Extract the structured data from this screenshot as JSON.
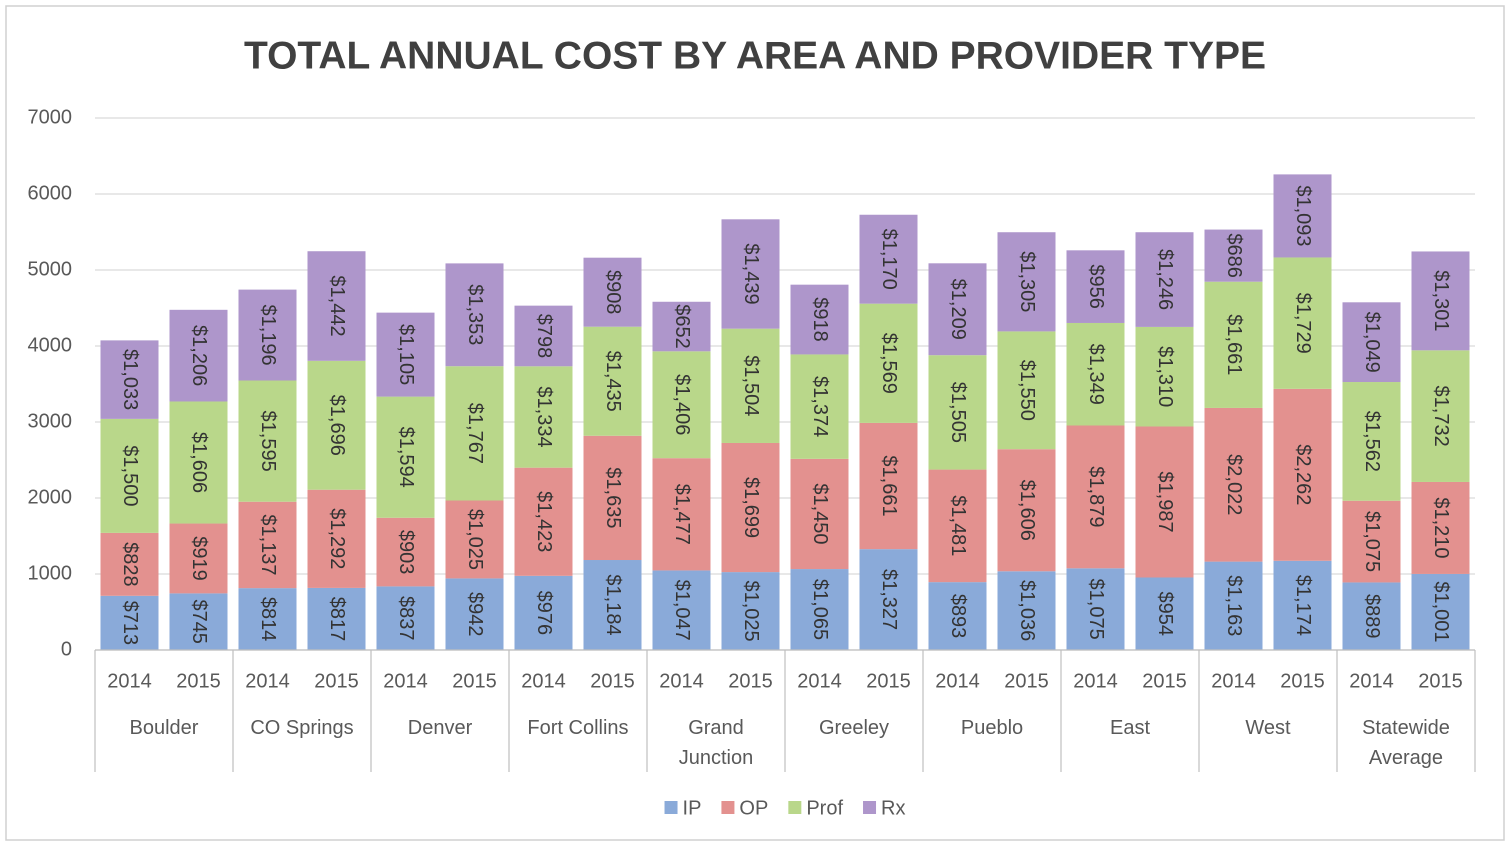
{
  "chart_data": {
    "type": "bar",
    "stacked": true,
    "title": "TOTAL ANNUAL COST BY AREA AND PROVIDER TYPE",
    "categories": [
      "2014",
      "2015",
      "2014",
      "2015",
      "2014",
      "2015",
      "2014",
      "2015",
      "2014",
      "2015",
      "2014",
      "2015",
      "2014",
      "2015",
      "2014",
      "2015",
      "2014",
      "2015",
      "2014",
      "2015"
    ],
    "groups": [
      "Boulder",
      "CO Springs",
      "Denver",
      "Fort Collins",
      "Grand Junction",
      "Greeley",
      "Pueblo",
      "East",
      "West",
      "Statewide Average"
    ],
    "series": [
      {
        "name": "IP",
        "color": "#8aaad9",
        "values": [
          713,
          745,
          814,
          817,
          837,
          942,
          976,
          1184,
          1047,
          1025,
          1065,
          1327,
          893,
          1036,
          1075,
          954,
          1163,
          1174,
          889,
          1001
        ],
        "value_labels": [
          "$713",
          "$745",
          "$814",
          "$817",
          "$837",
          "$942",
          "$976",
          "$1,184",
          "$1,047",
          "$1,025",
          "$1,065",
          "$1,327",
          "$893",
          "$1,036",
          "$1,075",
          "$954",
          "$1,163",
          "$1,174",
          "$889",
          "$1,001"
        ]
      },
      {
        "name": "OP",
        "color": "#e3918f",
        "values": [
          828,
          919,
          1137,
          1292,
          903,
          1025,
          1423,
          1635,
          1477,
          1699,
          1450,
          1661,
          1481,
          1606,
          1879,
          1987,
          2022,
          2262,
          1075,
          1210
        ],
        "value_labels": [
          "$828",
          "$919",
          "$1,137",
          "$1,292",
          "$903",
          "$1,025",
          "$1,423",
          "$1,635",
          "$1,477",
          "$1,699",
          "$1,450",
          "$1,661",
          "$1,481",
          "$1,606",
          "$1,879",
          "$1,987",
          "$2,022",
          "$2,262",
          "$1,075",
          "$1,210"
        ]
      },
      {
        "name": "Prof",
        "color": "#b9d78a",
        "values": [
          1500,
          1606,
          1595,
          1696,
          1594,
          1767,
          1334,
          1435,
          1406,
          1504,
          1374,
          1569,
          1505,
          1550,
          1349,
          1310,
          1661,
          1729,
          1562,
          1732
        ],
        "value_labels": [
          "$1,500",
          "$1,606",
          "$1,595",
          "$1,696",
          "$1,594",
          "$1,767",
          "$1,334",
          "$1,435",
          "$1,406",
          "$1,504",
          "$1,374",
          "$1,569",
          "$1,505",
          "$1,550",
          "$1,349",
          "$1,310",
          "$1,661",
          "$1,729",
          "$1,562",
          "$1,732"
        ]
      },
      {
        "name": "Rx",
        "color": "#ae96cb",
        "values": [
          1033,
          1206,
          1196,
          1442,
          1105,
          1353,
          798,
          908,
          652,
          1439,
          918,
          1170,
          1209,
          1305,
          956,
          1246,
          686,
          1093,
          1049,
          1301
        ],
        "value_labels": [
          "$1,033",
          "$1,206",
          "$1,196",
          "$1,442",
          "$1,105",
          "$1,353",
          "$798",
          "$908",
          "$652",
          "$1,439",
          "$918",
          "$1,170",
          "$1,209",
          "$1,305",
          "$956",
          "$1,246",
          "$686",
          "$1,093",
          "$1,049",
          "$1,301"
        ]
      }
    ],
    "ylim": [
      0,
      7000
    ],
    "yticks": [
      0,
      1000,
      2000,
      3000,
      4000,
      5000,
      6000,
      7000
    ],
    "grid": true,
    "legend": "bottom"
  }
}
